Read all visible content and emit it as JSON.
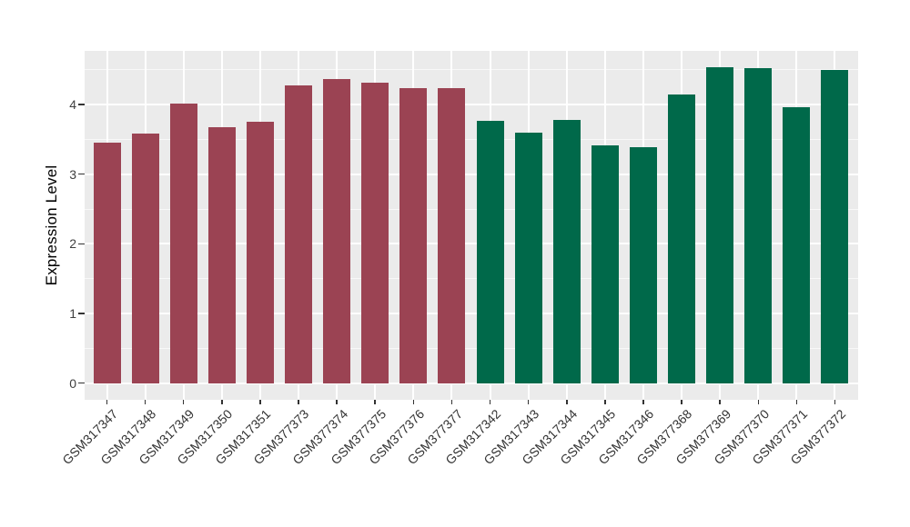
{
  "colors": {
    "figure_background": "#FFFFFF",
    "panel_background": "#EBEBEB",
    "grid_major": "#FFFFFF",
    "grid_minor": "#FFFFFF",
    "tick_mark": "#333333",
    "axis_text": "#404040",
    "axis_title_text": "#000000",
    "group_colors": [
      "#9B4353",
      "#00694A"
    ]
  },
  "chart_data": {
    "type": "bar",
    "title": "",
    "xlabel": "",
    "ylabel": "Expression Level",
    "categories": [
      "GSM317347",
      "GSM317348",
      "GSM317349",
      "GSM317350",
      "GSM317351",
      "GSM377373",
      "GSM377374",
      "GSM377375",
      "GSM377376",
      "GSM377377",
      "GSM317342",
      "GSM317343",
      "GSM317344",
      "GSM317345",
      "GSM317346",
      "GSM377368",
      "GSM377369",
      "GSM377370",
      "GSM377371",
      "GSM377372"
    ],
    "values": [
      3.45,
      3.58,
      4.02,
      3.67,
      3.75,
      4.28,
      4.37,
      4.32,
      4.24,
      4.23,
      3.77,
      3.6,
      3.78,
      3.41,
      3.39,
      4.15,
      4.54,
      4.53,
      3.96,
      4.5
    ],
    "group_of_bar": [
      0,
      0,
      0,
      0,
      0,
      0,
      0,
      0,
      0,
      0,
      1,
      1,
      1,
      1,
      1,
      1,
      1,
      1,
      1,
      1
    ],
    "yticks": [
      0,
      1,
      2,
      3,
      4
    ],
    "yticks_minor": [
      0.5,
      1.5,
      2.5,
      3.5,
      4.5
    ],
    "ylim": [
      -0.23,
      4.78
    ],
    "grid": "horizontal major+minor; vertical major at bar centers",
    "legend_position": "none",
    "x_label_rotation_deg": 45
  }
}
